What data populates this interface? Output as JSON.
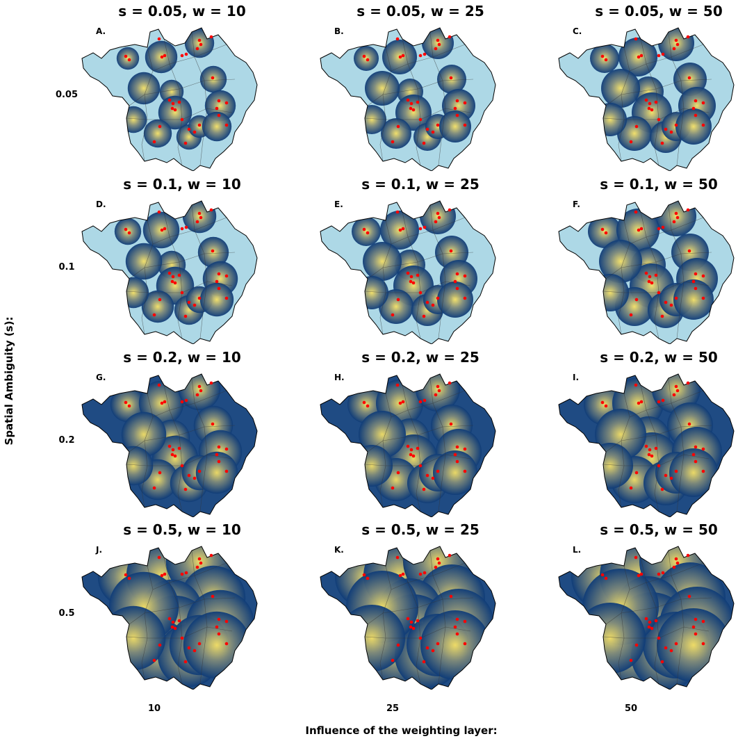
{
  "figure": {
    "y_title": "Spatial Ambiguity (s):",
    "x_title": "Influence of the weighting layer:",
    "row_labels": [
      "0.05",
      "0.1",
      "0.2",
      "0.5"
    ],
    "col_labels": [
      "10",
      "25",
      "50"
    ]
  },
  "colors": {
    "background_region": "#add8e6",
    "outline": "#000000",
    "low_density": "#0f3c78",
    "mid_density": "#7f8a7a",
    "high_density": "#f5e066",
    "points": "#ff0000"
  },
  "panels": [
    {
      "letter": "A.",
      "title": "s = 0.05, w = 10",
      "s": 0.05,
      "w": 10
    },
    {
      "letter": "B.",
      "title": "s = 0.05, w = 25",
      "s": 0.05,
      "w": 25
    },
    {
      "letter": "C.",
      "title": "s = 0.05, w = 50",
      "s": 0.05,
      "w": 50
    },
    {
      "letter": "D.",
      "title": "s = 0.1, w = 10",
      "s": 0.1,
      "w": 10
    },
    {
      "letter": "E.",
      "title": "s = 0.1, w = 25",
      "s": 0.1,
      "w": 25
    },
    {
      "letter": "F.",
      "title": "s = 0.1, w = 50",
      "s": 0.1,
      "w": 50
    },
    {
      "letter": "G.",
      "title": "s = 0.2, w = 10",
      "s": 0.2,
      "w": 10
    },
    {
      "letter": "H.",
      "title": "s = 0.2, w = 25",
      "s": 0.2,
      "w": 25
    },
    {
      "letter": "I.",
      "title": "s = 0.2, w = 50",
      "s": 0.2,
      "w": 50
    },
    {
      "letter": "J.",
      "title": "s = 0.5, w = 10",
      "s": 0.5,
      "w": 10
    },
    {
      "letter": "K.",
      "title": "s = 0.5, w = 25",
      "s": 0.5,
      "w": 25
    },
    {
      "letter": "L.",
      "title": "s = 0.5, w = 50",
      "s": 0.5,
      "w": 50
    }
  ]
}
